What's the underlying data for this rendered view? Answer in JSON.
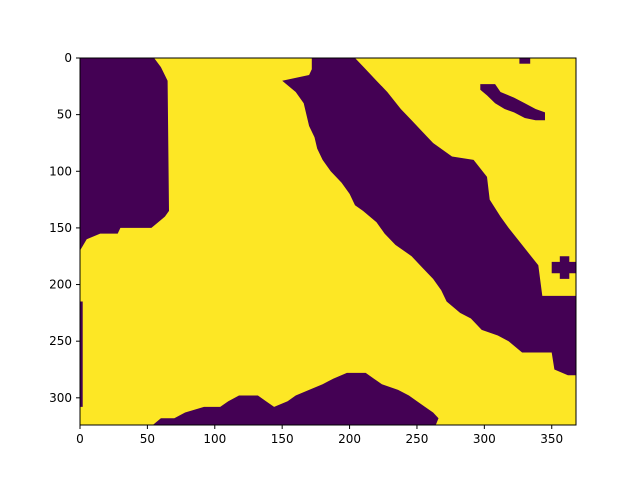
{
  "chart_data": {
    "type": "heatmap",
    "title": "",
    "xlabel": "",
    "ylabel": "",
    "xlim": [
      0,
      368
    ],
    "ylim": [
      324,
      0
    ],
    "y_axis_inverted": true,
    "x_ticks": [
      0,
      50,
      100,
      150,
      200,
      250,
      300,
      350
    ],
    "y_ticks": [
      0,
      50,
      100,
      150,
      200,
      250,
      300
    ],
    "grid": false,
    "legend": "none",
    "colormap": "viridis",
    "colors": {
      "low": "#440154",
      "high": "#fde725"
    },
    "value_range": [
      0,
      1
    ],
    "background_value": 1,
    "regions": [
      {
        "value": 0,
        "description": "top-left dark region",
        "polygon": [
          [
            0,
            0
          ],
          [
            55,
            0
          ],
          [
            60,
            8
          ],
          [
            65,
            20
          ],
          [
            66,
            135
          ],
          [
            63,
            140
          ],
          [
            58,
            145
          ],
          [
            53,
            150
          ],
          [
            30,
            150
          ],
          [
            28,
            155
          ],
          [
            15,
            155
          ],
          [
            5,
            160
          ],
          [
            0,
            170
          ]
        ]
      },
      {
        "value": 0,
        "description": "diagonal dark band",
        "polygon": [
          [
            172,
            0
          ],
          [
            204,
            0
          ],
          [
            212,
            10
          ],
          [
            220,
            20
          ],
          [
            228,
            30
          ],
          [
            238,
            45
          ],
          [
            246,
            55
          ],
          [
            254,
            65
          ],
          [
            262,
            75
          ],
          [
            276,
            87
          ],
          [
            292,
            90
          ],
          [
            302,
            105
          ],
          [
            304,
            125
          ],
          [
            312,
            140
          ],
          [
            318,
            150
          ],
          [
            328,
            165
          ],
          [
            340,
            183
          ],
          [
            343,
            210
          ],
          [
            368,
            210
          ],
          [
            368,
            280
          ],
          [
            362,
            280
          ],
          [
            352,
            275
          ],
          [
            350,
            260
          ],
          [
            328,
            260
          ],
          [
            318,
            250
          ],
          [
            310,
            245
          ],
          [
            298,
            240
          ],
          [
            290,
            230
          ],
          [
            282,
            225
          ],
          [
            272,
            215
          ],
          [
            268,
            205
          ],
          [
            262,
            195
          ],
          [
            254,
            185
          ],
          [
            246,
            175
          ],
          [
            234,
            165
          ],
          [
            226,
            155
          ],
          [
            220,
            145
          ],
          [
            210,
            135
          ],
          [
            204,
            130
          ],
          [
            200,
            120
          ],
          [
            194,
            110
          ],
          [
            186,
            100
          ],
          [
            180,
            90
          ],
          [
            176,
            80
          ],
          [
            174,
            70
          ],
          [
            170,
            60
          ],
          [
            168,
            50
          ],
          [
            166,
            40
          ],
          [
            160,
            30
          ],
          [
            150,
            20
          ],
          [
            170,
            15
          ],
          [
            172,
            10
          ]
        ]
      },
      {
        "value": 0,
        "description": "left edge strip",
        "polygon": [
          [
            0,
            215
          ],
          [
            2,
            215
          ],
          [
            2,
            308
          ],
          [
            0,
            308
          ]
        ]
      },
      {
        "value": 0,
        "description": "bottom mound",
        "polygon": [
          [
            54,
            324
          ],
          [
            60,
            318
          ],
          [
            70,
            318
          ],
          [
            78,
            313
          ],
          [
            92,
            308
          ],
          [
            104,
            308
          ],
          [
            110,
            303
          ],
          [
            118,
            298
          ],
          [
            132,
            298
          ],
          [
            138,
            303
          ],
          [
            144,
            308
          ],
          [
            154,
            303
          ],
          [
            160,
            298
          ],
          [
            170,
            293
          ],
          [
            180,
            288
          ],
          [
            188,
            283
          ],
          [
            198,
            278
          ],
          [
            212,
            278
          ],
          [
            218,
            283
          ],
          [
            224,
            288
          ],
          [
            236,
            293
          ],
          [
            244,
            298
          ],
          [
            250,
            303
          ],
          [
            256,
            308
          ],
          [
            262,
            313
          ],
          [
            266,
            318
          ],
          [
            264,
            324
          ]
        ]
      },
      {
        "value": 0,
        "description": "small diagonal streak",
        "polygon": [
          [
            297,
            23
          ],
          [
            308,
            23
          ],
          [
            312,
            30
          ],
          [
            322,
            35
          ],
          [
            330,
            40
          ],
          [
            338,
            45
          ],
          [
            345,
            48
          ],
          [
            345,
            55
          ],
          [
            338,
            55
          ],
          [
            330,
            53
          ],
          [
            322,
            48
          ],
          [
            315,
            45
          ],
          [
            308,
            40
          ],
          [
            302,
            33
          ],
          [
            297,
            28
          ]
        ]
      },
      {
        "value": 0,
        "description": "top-right notch",
        "polygon": [
          [
            326,
            0
          ],
          [
            334,
            0
          ],
          [
            334,
            5
          ],
          [
            326,
            5
          ]
        ]
      },
      {
        "value": 0,
        "description": "small cross blob",
        "polygon": [
          [
            350,
            180
          ],
          [
            356,
            180
          ],
          [
            356,
            175
          ],
          [
            363,
            175
          ],
          [
            363,
            180
          ],
          [
            368,
            180
          ],
          [
            368,
            190
          ],
          [
            363,
            190
          ],
          [
            363,
            195
          ],
          [
            356,
            195
          ],
          [
            356,
            190
          ],
          [
            350,
            190
          ]
        ]
      }
    ]
  }
}
